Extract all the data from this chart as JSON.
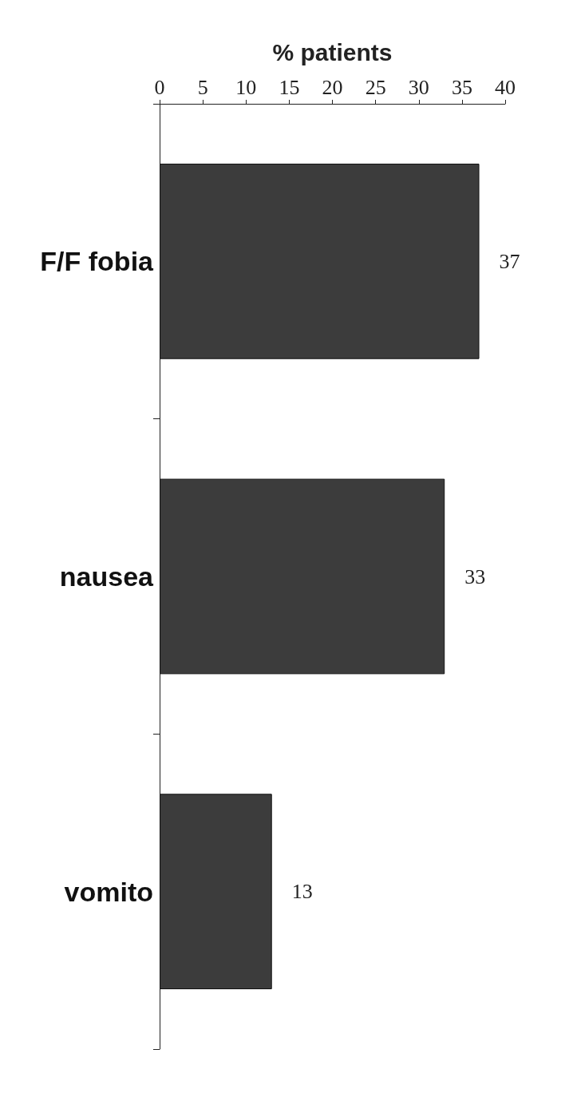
{
  "chart_data": {
    "type": "bar",
    "orientation": "horizontal",
    "xlabel": "% patients",
    "categories": [
      "F/F fobia",
      "nausea",
      "vomito"
    ],
    "values": [
      37,
      33,
      13
    ],
    "color": "#3c3c3c",
    "xlim": [
      0,
      40
    ],
    "xticks": [
      0,
      5,
      10,
      15,
      20,
      25,
      30,
      35,
      40
    ],
    "grid": false,
    "data_labels": true
  }
}
